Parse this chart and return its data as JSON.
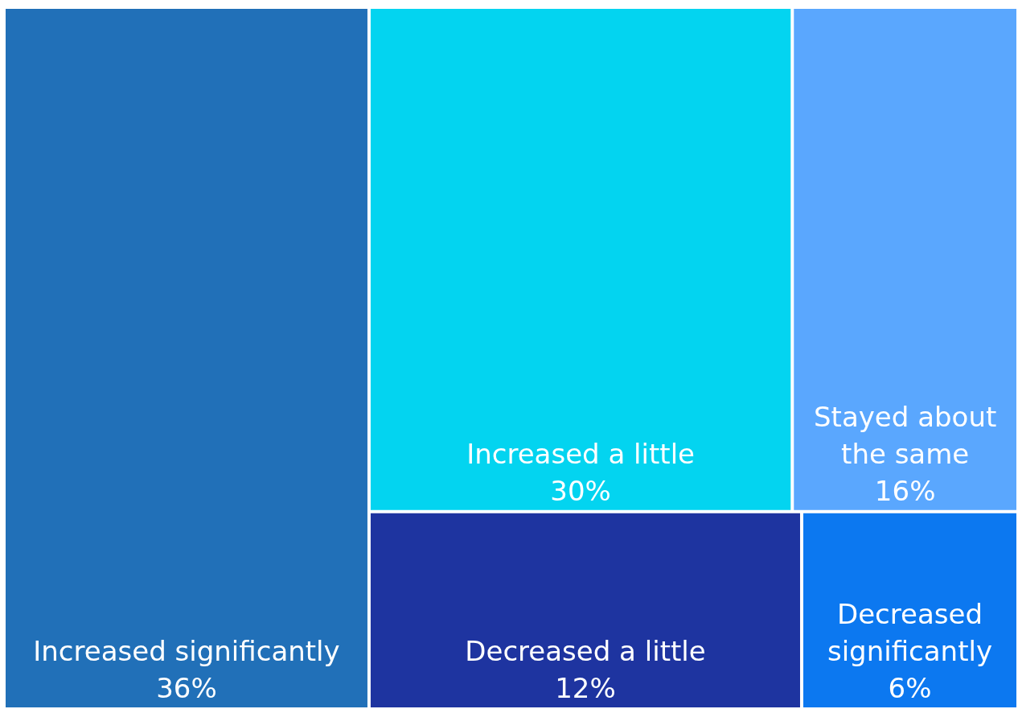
{
  "chart_data": {
    "type": "other",
    "categories": [
      "Increased significantly",
      "Increased a little",
      "Stayed about the same",
      "Decreased a little",
      "Decreased significantly"
    ],
    "values": [
      36,
      30,
      16,
      12,
      6
    ],
    "value_labels": [
      "36%",
      "30%",
      "16%",
      "12%",
      "6%"
    ],
    "colors": [
      "#2170b8",
      "#03d4f0",
      "#5aa7fe",
      "#1e34a0",
      "#0c78f0"
    ]
  }
}
